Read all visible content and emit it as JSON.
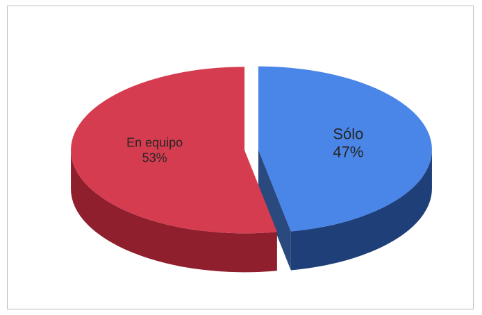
{
  "chart_data": {
    "type": "pie",
    "style": "3d-exploded",
    "slices": [
      {
        "label": "Sólo",
        "value": 47,
        "value_label": "47%",
        "color": "#4a86e8",
        "side_color": "#1f3f78"
      },
      {
        "label": "En equipo",
        "value": 53,
        "value_label": "53%",
        "color": "#d63c4f",
        "side_color": "#8f1f2d"
      }
    ],
    "legend": "none"
  }
}
